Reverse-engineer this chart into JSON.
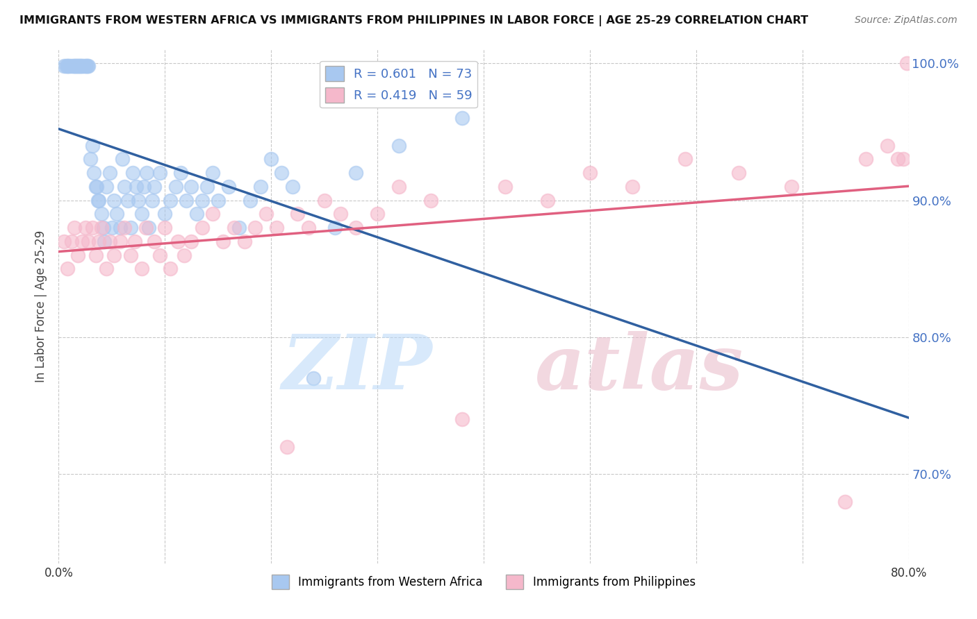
{
  "title": "IMMIGRANTS FROM WESTERN AFRICA VS IMMIGRANTS FROM PHILIPPINES IN LABOR FORCE | AGE 25-29 CORRELATION CHART",
  "source": "Source: ZipAtlas.com",
  "ylabel": "In Labor Force | Age 25-29",
  "xlim": [
    0.0,
    0.8
  ],
  "ylim": [
    0.635,
    1.01
  ],
  "xticks": [
    0.0,
    0.1,
    0.2,
    0.3,
    0.4,
    0.5,
    0.6,
    0.7,
    0.8
  ],
  "yticks": [
    0.7,
    0.8,
    0.9,
    1.0
  ],
  "legend_blue_label": "Immigrants from Western Africa",
  "legend_pink_label": "Immigrants from Philippines",
  "r_blue": 0.601,
  "n_blue": 73,
  "r_pink": 0.419,
  "n_pink": 59,
  "blue_color": "#a8c8f0",
  "pink_color": "#f5b8cb",
  "trend_blue_color": "#3060a0",
  "trend_pink_color": "#e06080",
  "background_color": "#ffffff",
  "grid_color": "#c8c8c8",
  "blue_x": [
    0.005,
    0.007,
    0.008,
    0.009,
    0.01,
    0.012,
    0.014,
    0.015,
    0.016,
    0.017,
    0.018,
    0.019,
    0.02,
    0.021,
    0.022,
    0.023,
    0.025,
    0.026,
    0.027,
    0.028,
    0.03,
    0.032,
    0.033,
    0.035,
    0.036,
    0.037,
    0.038,
    0.04,
    0.042,
    0.043,
    0.045,
    0.048,
    0.05,
    0.052,
    0.055,
    0.058,
    0.06,
    0.062,
    0.065,
    0.068,
    0.07,
    0.073,
    0.075,
    0.078,
    0.08,
    0.083,
    0.085,
    0.088,
    0.09,
    0.095,
    0.1,
    0.105,
    0.11,
    0.115,
    0.12,
    0.125,
    0.13,
    0.135,
    0.14,
    0.145,
    0.15,
    0.16,
    0.17,
    0.18,
    0.19,
    0.2,
    0.21,
    0.22,
    0.24,
    0.26,
    0.28,
    0.32,
    0.38
  ],
  "blue_y": [
    0.998,
    0.998,
    0.998,
    0.998,
    0.998,
    0.998,
    0.998,
    0.998,
    0.998,
    0.998,
    0.998,
    0.998,
    0.998,
    0.998,
    0.998,
    0.998,
    0.998,
    0.998,
    0.998,
    0.998,
    0.93,
    0.94,
    0.92,
    0.91,
    0.91,
    0.9,
    0.9,
    0.89,
    0.88,
    0.87,
    0.91,
    0.92,
    0.88,
    0.9,
    0.89,
    0.88,
    0.93,
    0.91,
    0.9,
    0.88,
    0.92,
    0.91,
    0.9,
    0.89,
    0.91,
    0.92,
    0.88,
    0.9,
    0.91,
    0.92,
    0.89,
    0.9,
    0.91,
    0.92,
    0.9,
    0.91,
    0.89,
    0.9,
    0.91,
    0.92,
    0.9,
    0.91,
    0.88,
    0.9,
    0.91,
    0.93,
    0.92,
    0.91,
    0.77,
    0.88,
    0.92,
    0.94,
    0.96
  ],
  "pink_x": [
    0.005,
    0.008,
    0.012,
    0.015,
    0.018,
    0.022,
    0.025,
    0.028,
    0.032,
    0.035,
    0.038,
    0.04,
    0.045,
    0.048,
    0.052,
    0.058,
    0.062,
    0.068,
    0.072,
    0.078,
    0.082,
    0.09,
    0.095,
    0.1,
    0.105,
    0.112,
    0.118,
    0.125,
    0.135,
    0.145,
    0.155,
    0.165,
    0.175,
    0.185,
    0.195,
    0.205,
    0.215,
    0.225,
    0.235,
    0.25,
    0.265,
    0.28,
    0.3,
    0.32,
    0.35,
    0.38,
    0.42,
    0.46,
    0.5,
    0.54,
    0.59,
    0.64,
    0.69,
    0.74,
    0.76,
    0.78,
    0.79,
    0.795,
    0.798
  ],
  "pink_y": [
    0.87,
    0.85,
    0.87,
    0.88,
    0.86,
    0.87,
    0.88,
    0.87,
    0.88,
    0.86,
    0.87,
    0.88,
    0.85,
    0.87,
    0.86,
    0.87,
    0.88,
    0.86,
    0.87,
    0.85,
    0.88,
    0.87,
    0.86,
    0.88,
    0.85,
    0.87,
    0.86,
    0.87,
    0.88,
    0.89,
    0.87,
    0.88,
    0.87,
    0.88,
    0.89,
    0.88,
    0.72,
    0.89,
    0.88,
    0.9,
    0.89,
    0.88,
    0.89,
    0.91,
    0.9,
    0.74,
    0.91,
    0.9,
    0.92,
    0.91,
    0.93,
    0.92,
    0.91,
    0.68,
    0.93,
    0.94,
    0.93,
    0.93,
    1.0
  ]
}
